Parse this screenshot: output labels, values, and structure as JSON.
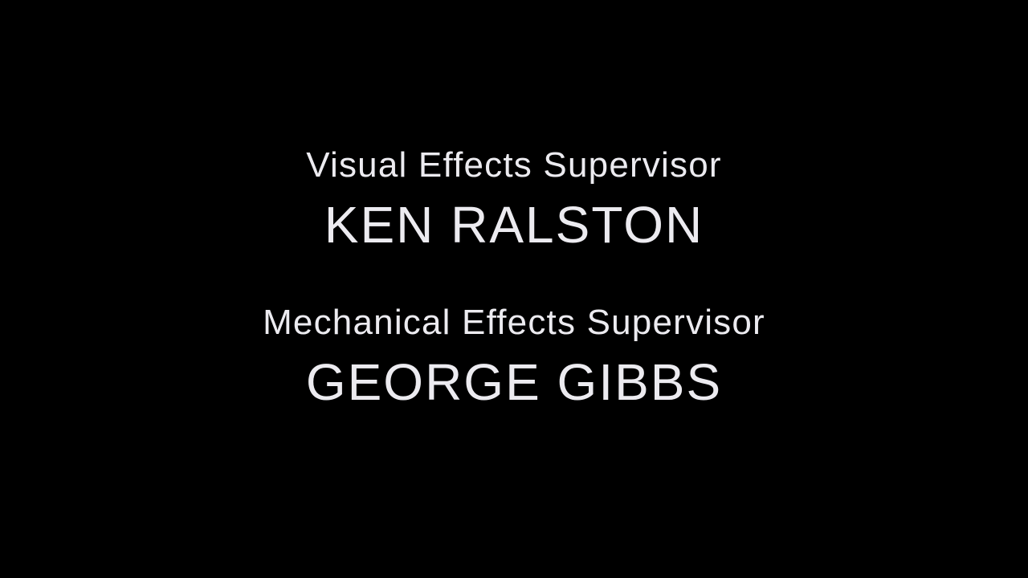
{
  "credits": [
    {
      "role": "Visual Effects Supervisor",
      "name": "KEN RALSTON"
    },
    {
      "role": "Mechanical Effects Supervisor",
      "name": "GEORGE GIBBS"
    }
  ],
  "colors": {
    "background": "#000000",
    "text": "#ecebf0"
  }
}
